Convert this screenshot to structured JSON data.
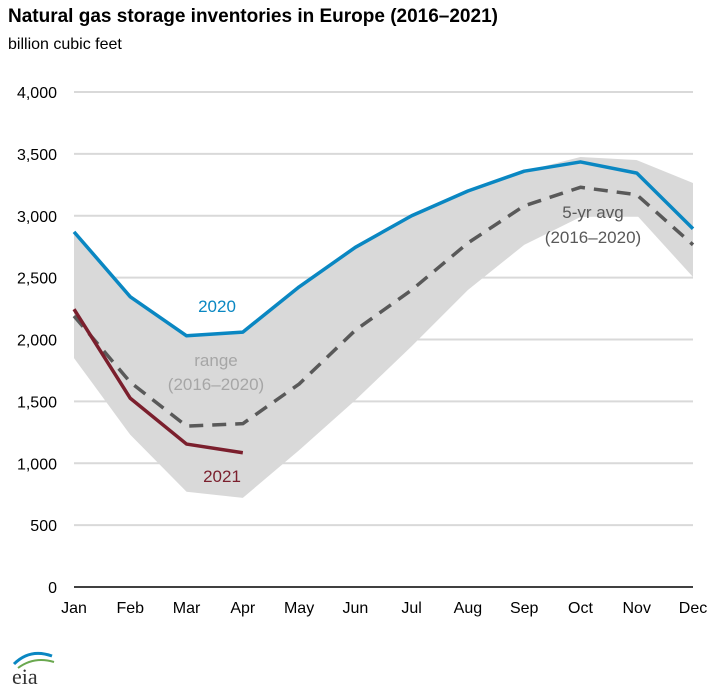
{
  "title": "Natural gas storage inventories in Europe (2016–2021)",
  "subtitle": "billion cubic feet",
  "logo_text": "eia",
  "chart_data": {
    "type": "line",
    "title": "Natural gas storage inventories in Europe (2016–2021)",
    "ylabel": "billion cubic feet",
    "categories": [
      "Jan",
      "Feb",
      "Mar",
      "Apr",
      "May",
      "Jun",
      "Jul",
      "Aug",
      "Sep",
      "Oct",
      "Nov",
      "Dec"
    ],
    "ylim": [
      0,
      4000
    ],
    "yticks": [
      0,
      500,
      1000,
      1500,
      2000,
      2500,
      3000,
      3500,
      4000
    ],
    "ytick_labels": [
      "0",
      "500",
      "1,000",
      "1,500",
      "2,000",
      "2,500",
      "3,000",
      "3,500",
      "4,000"
    ],
    "grid": true,
    "range": {
      "label": "range (2016–2020)",
      "label_lines": [
        "range",
        "(2016–2020)"
      ],
      "color": "#d9d9d9",
      "max": [
        2870,
        2345,
        2030,
        2060,
        2425,
        2745,
        3000,
        3200,
        3360,
        3475,
        3450,
        3265
      ],
      "min": [
        1850,
        1230,
        770,
        720,
        1105,
        1510,
        1945,
        2400,
        2765,
        2990,
        3005,
        2505
      ]
    },
    "series": [
      {
        "name": "2020",
        "color": "#0a87c2",
        "dash": false,
        "values": [
          2870,
          2345,
          2030,
          2060,
          2425,
          2745,
          3000,
          3200,
          3360,
          3435,
          3345,
          2895
        ]
      },
      {
        "name": "2021",
        "color": "#7b1f2d",
        "dash": false,
        "values": [
          2245,
          1525,
          1155,
          1085,
          null,
          null,
          null,
          null,
          null,
          null,
          null,
          null
        ]
      },
      {
        "name": "5-yr avg (2016–2020)",
        "label_lines": [
          "5-yr avg",
          "(2016–2020)"
        ],
        "color": "#595959",
        "dash": true,
        "values": [
          2190,
          1655,
          1300,
          1320,
          1640,
          2075,
          2400,
          2780,
          3080,
          3230,
          3170,
          2765
        ]
      }
    ]
  }
}
